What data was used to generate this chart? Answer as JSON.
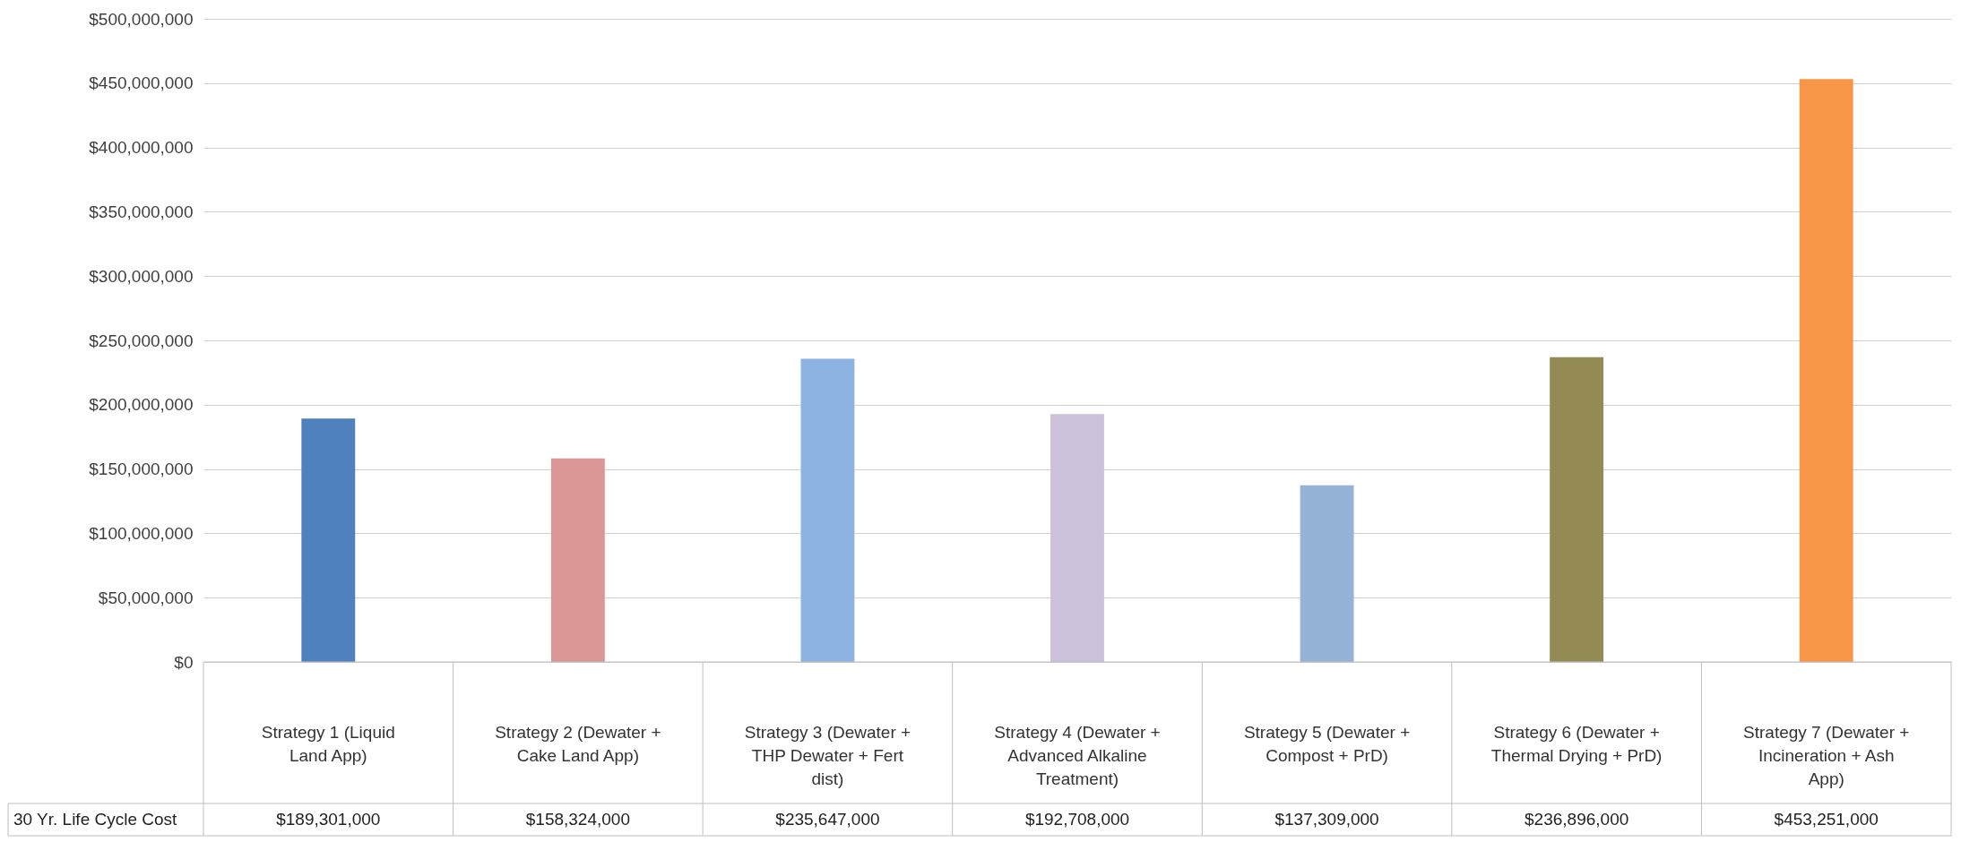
{
  "chart_data": {
    "type": "bar",
    "categories": [
      "Strategy 1 (Liquid Land App)",
      "Strategy 2 (Dewater + Cake Land App)",
      "Strategy 3 (Dewater + THP Dewater + Fert dist)",
      "Strategy 4 (Dewater + Advanced Alkaline Treatment)",
      "Strategy 5 (Dewater + Compost + PrD)",
      "Strategy 6 (Dewater + Thermal Drying + PrD)",
      "Strategy 7 (Dewater + Incineration + Ash App)"
    ],
    "series": [
      {
        "name": "30 Yr. Life Cycle Cost",
        "values": [
          189301000,
          158324000,
          235647000,
          192708000,
          137309000,
          236896000,
          453251000
        ],
        "colors": [
          "#4f81bd",
          "#d99694",
          "#8db3e2",
          "#ccc1da",
          "#95b3d7",
          "#948a54",
          "#f79646"
        ],
        "value_labels": [
          "$189,301,000",
          "$158,324,000",
          "$235,647,000",
          "$192,708,000",
          "$137,309,000",
          "$236,896,000",
          "$453,251,000"
        ]
      }
    ],
    "ylim": [
      0,
      500000000
    ],
    "yticks": [
      {
        "value": 0,
        "label": "$0"
      },
      {
        "value": 50000000,
        "label": "$50,000,000"
      },
      {
        "value": 100000000,
        "label": "$100,000,000"
      },
      {
        "value": 150000000,
        "label": "$150,000,000"
      },
      {
        "value": 200000000,
        "label": "$200,000,000"
      },
      {
        "value": 250000000,
        "label": "$250,000,000"
      },
      {
        "value": 300000000,
        "label": "$300,000,000"
      },
      {
        "value": 350000000,
        "label": "$350,000,000"
      },
      {
        "value": 400000000,
        "label": "$400,000,000"
      },
      {
        "value": 450000000,
        "label": "$450,000,000"
      },
      {
        "value": 500000000,
        "label": "$500,000,000"
      }
    ],
    "grid": "y"
  }
}
